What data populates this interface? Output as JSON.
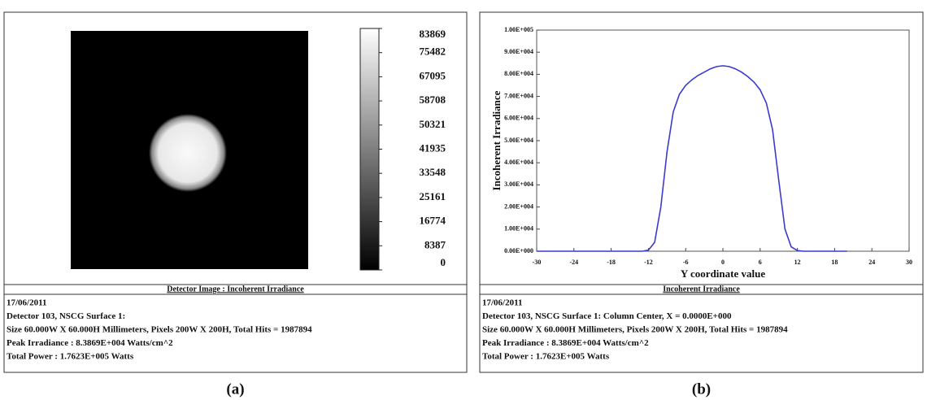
{
  "chart_data": [
    {
      "type": "image",
      "title": "Detector Image : Incoherent Irradiance",
      "clim": [
        0,
        83869
      ],
      "cticks": [
        0,
        8387,
        16774,
        25161,
        33548,
        41935,
        50321,
        58708,
        67095,
        75482,
        83869
      ],
      "info": [
        "17/06/2011",
        "Detector 103, NSCG Surface 1:",
        "Size 60.000W X 60.000H Millimeters, Pixels 200W X 200H, Total Hits = 1987894",
        "Peak Irradiance : 8.3869E+004 Watts/cm^2",
        "Total Power : 1.7623E+005 Watts"
      ],
      "panel_label": "(a)"
    },
    {
      "type": "line",
      "title": "Incoherent Irradiance",
      "x_label": "Y coordinate value",
      "y_label": "Incoherent Irradiance",
      "x": [
        -30,
        -20,
        -13,
        -12,
        -11,
        -10,
        -9,
        -8,
        -7,
        -6,
        -5,
        -4,
        -3,
        -2,
        -1,
        0,
        1,
        2,
        3,
        4,
        5,
        6,
        7,
        8,
        9,
        10,
        11,
        12,
        13,
        20
      ],
      "series": [
        {
          "name": "Incoherent Irradiance",
          "color": "#3a3ad0",
          "values": [
            0,
            0,
            0,
            500,
            4000,
            20000,
            45000,
            63000,
            71000,
            75000,
            77500,
            79500,
            81000,
            82500,
            83500,
            83869,
            83500,
            82500,
            81000,
            79000,
            76500,
            73000,
            67000,
            55000,
            32000,
            10000,
            2000,
            300,
            0,
            0
          ]
        }
      ],
      "xlim": [
        -30,
        30
      ],
      "xticks": [
        -30,
        -24,
        -18,
        -12,
        -6,
        0,
        6,
        12,
        18,
        24,
        30
      ],
      "ylim": [
        0,
        100000
      ],
      "yticks": [
        {
          "value": 0,
          "label": "0.00E+000"
        },
        {
          "value": 10000,
          "label": "1.00E+004"
        },
        {
          "value": 20000,
          "label": "2.00E+004"
        },
        {
          "value": 30000,
          "label": "3.00E+004"
        },
        {
          "value": 40000,
          "label": "4.00E+004"
        },
        {
          "value": 50000,
          "label": "5.00E+004"
        },
        {
          "value": 60000,
          "label": "6.00E+004"
        },
        {
          "value": 70000,
          "label": "7.00E+004"
        },
        {
          "value": 80000,
          "label": "8.00E+004"
        },
        {
          "value": 90000,
          "label": "9.00E+004"
        },
        {
          "value": 100000,
          "label": "1.00E+005"
        }
      ],
      "info": [
        "17/06/2011",
        "Detector 103, NSCG Surface 1: Column Center, X = 0.0000E+000",
        "Size 60.000W X 60.000H Millimeters, Pixels 200W X 200H, Total Hits = 1987894",
        "Peak Irradiance : 8.3869E+004 Watts/cm^2",
        "Total Power : 1.7623E+005 Watts"
      ],
      "panel_label": "(b)"
    }
  ]
}
